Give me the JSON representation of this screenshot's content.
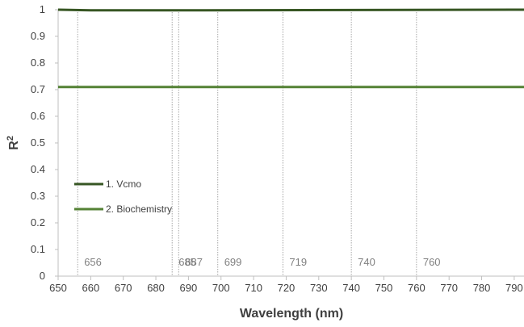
{
  "chart_data": {
    "type": "line",
    "xlabel": "Wavelength (nm)",
    "ylabel": "R",
    "ylabel_superscript": "2",
    "xlim": [
      650,
      793
    ],
    "ylim": [
      0,
      1
    ],
    "x_ticks": [
      "650",
      "660",
      "670",
      "680",
      "690",
      "700",
      "710",
      "720",
      "730",
      "740",
      "750",
      "760",
      "770",
      "780",
      "790"
    ],
    "y_ticks": [
      "0",
      "0.1",
      "0.2",
      "0.3",
      "0.4",
      "0.5",
      "0.6",
      "0.7",
      "0.8",
      "0.9",
      "1"
    ],
    "grid": false,
    "legend_position": "inside-left",
    "series": [
      {
        "name": "1. Vcmo",
        "color": "#375623",
        "x": [
          650,
          660,
          694,
          793
        ],
        "y": [
          1.0,
          0.998,
          0.998,
          1.0
        ]
      },
      {
        "name": "2. Biochemistry",
        "color": "#548235",
        "x": [
          650,
          793
        ],
        "y": [
          0.71,
          0.71
        ]
      }
    ],
    "marker_lines": [
      {
        "x": 656,
        "label": "656"
      },
      {
        "x": 685,
        "label": "685"
      },
      {
        "x": 687,
        "label": "687"
      },
      {
        "x": 699,
        "label": "699"
      },
      {
        "x": 719,
        "label": "719"
      },
      {
        "x": 740,
        "label": "740"
      },
      {
        "x": 760,
        "label": "760"
      }
    ],
    "marker_line_color": "#a6a6a6"
  }
}
